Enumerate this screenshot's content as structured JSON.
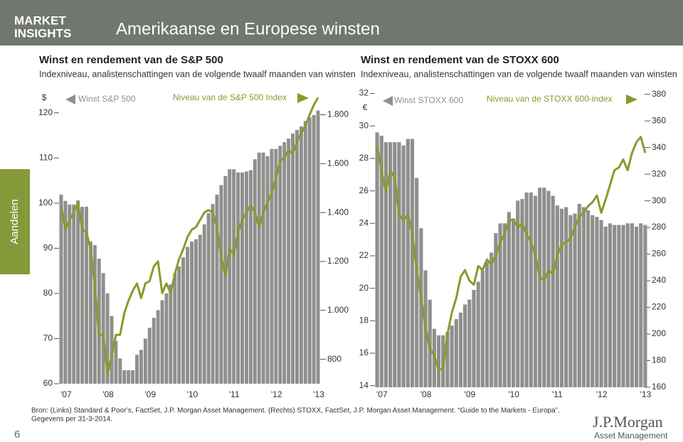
{
  "header": {
    "logo": [
      "MARKET",
      "INSIGHTS"
    ],
    "title": "Amerikaanse en Europese winsten"
  },
  "side_tab": "Aandelen",
  "chart_data": [
    {
      "type": "combo",
      "title": "Winst en rendement van de S&P 500",
      "subtitle": "Indexniveau, analistenschattingen van de volgende twaalf maanden van winsten",
      "y_unit": "$",
      "categories": [
        "'07",
        null,
        null,
        null,
        null,
        null,
        null,
        null,
        null,
        null,
        "'08",
        null,
        null,
        null,
        null,
        null,
        null,
        null,
        null,
        null,
        "'09",
        null,
        null,
        null,
        null,
        null,
        null,
        null,
        null,
        null,
        "'10",
        null,
        null,
        null,
        null,
        null,
        null,
        null,
        null,
        null,
        "'11",
        null,
        null,
        null,
        null,
        null,
        null,
        null,
        null,
        null,
        "'12",
        null,
        null,
        null,
        null,
        null,
        null,
        null,
        null,
        null,
        "'13",
        null
      ],
      "ylim": [
        60,
        125
      ],
      "yticks": [
        60,
        70,
        80,
        90,
        100,
        110,
        120
      ],
      "y2lim": [
        700,
        1900
      ],
      "y2ticks": [
        800,
        {
          "value": 1000,
          "label": "1.000"
        },
        {
          "value": 1200,
          "label": "1.200"
        },
        {
          "value": 1400,
          "label": "1.400"
        },
        {
          "value": 1600,
          "label": "1.600"
        },
        {
          "value": 1800,
          "label": "1.800"
        }
      ],
      "series": [
        {
          "name": "Winst S&P 500",
          "color": "#8e908d",
          "type": "bar",
          "values": [
            101.9,
            100.5,
            99.7,
            99.7,
            100.6,
            99.2,
            99.2,
            91.5,
            90.7,
            87.7,
            84.5,
            80,
            75,
            69.5,
            65.6,
            63,
            63,
            63,
            66.4,
            67.5,
            70,
            72.4,
            74.6,
            76.3,
            78.5,
            80,
            82,
            84.5,
            86,
            88,
            90.3,
            91.5,
            92,
            93,
            95.3,
            97.8,
            99.8,
            101.9,
            104,
            106,
            107.5,
            107.5,
            106.8,
            106.8,
            107,
            107.3,
            109.7,
            111.2,
            111.2,
            110.4,
            112,
            112,
            112.7,
            113.5,
            114.3,
            115.4,
            116.2,
            117,
            118.2,
            119,
            119.5,
            120.5
          ]
        },
        {
          "name": "Niveau van de S&P 500 Index",
          "color": "#8a9a2b",
          "type": "line",
          "axis": "y2",
          "values": [
            1426,
            1330,
            1370,
            1400,
            1440,
            1330,
            1320,
            1250,
            1100,
            900,
            900,
            740,
            810,
            900,
            900,
            990,
            1040,
            1080,
            1110,
            1050,
            1110,
            1120,
            1180,
            1200,
            1070,
            1110,
            1070,
            1150,
            1210,
            1250,
            1300,
            1330,
            1340,
            1370,
            1400,
            1410,
            1400,
            1340,
            1220,
            1140,
            1250,
            1230,
            1320,
            1370,
            1400,
            1430,
            1400,
            1340,
            1400,
            1440,
            1480,
            1540,
            1610,
            1625,
            1655,
            1640,
            1690,
            1725,
            1755,
            1800,
            1840,
            1870
          ]
        }
      ]
    },
    {
      "type": "combo",
      "title": "Winst en rendement van de STOXX 600",
      "subtitle": "Indexniveau, analistenschattingen van de volgende twaalf maanden van winsten",
      "y_unit": "€",
      "categories": [
        "'07",
        null,
        null,
        null,
        null,
        null,
        null,
        null,
        null,
        null,
        "'08",
        null,
        null,
        null,
        null,
        null,
        null,
        null,
        null,
        null,
        "'09",
        null,
        null,
        null,
        null,
        null,
        null,
        null,
        null,
        null,
        "'10",
        null,
        null,
        null,
        null,
        null,
        null,
        null,
        null,
        null,
        "'11",
        null,
        null,
        null,
        null,
        null,
        null,
        null,
        null,
        null,
        "'12",
        null,
        null,
        null,
        null,
        null,
        null,
        null,
        null,
        null,
        "'13",
        null
      ],
      "ylim": [
        13.9,
        32.2
      ],
      "yticks": [
        14,
        16,
        18,
        20,
        22,
        24,
        26,
        28,
        30,
        32
      ],
      "y2lim": [
        160,
        383
      ],
      "y2ticks": [
        160,
        180,
        200,
        220,
        240,
        260,
        280,
        300,
        320,
        340,
        360,
        380
      ],
      "series": [
        {
          "name": "Winst STOXX 600",
          "color": "#8e908d",
          "type": "bar",
          "values": [
            29.6,
            29.4,
            29.0,
            29.0,
            29.0,
            29.0,
            28.8,
            29.2,
            29.2,
            26.8,
            23.7,
            21.1,
            19.3,
            17.5,
            17.1,
            17.1,
            17.3,
            17.7,
            18.1,
            18.5,
            19.0,
            19.3,
            19.9,
            20.4,
            21.1,
            21.6,
            22.2,
            23.4,
            24.0,
            24.0,
            24.7,
            24.3,
            25.4,
            25.5,
            25.9,
            25.9,
            25.7,
            26.2,
            26.2,
            26.0,
            25.7,
            25.1,
            24.9,
            25.0,
            24.5,
            24.6,
            25.2,
            25.0,
            24.8,
            24.5,
            24.4,
            24.2,
            23.8,
            24.0,
            23.9,
            23.9,
            23.9,
            24.0,
            24.0,
            23.8,
            24.0,
            23.9
          ]
        },
        {
          "name": "Niveau van de STOXX 600-index",
          "color": "#8a9a2b",
          "type": "line",
          "axis": "y2",
          "values": [
            341,
            322,
            307,
            323,
            317,
            290,
            285,
            290,
            275,
            248,
            227,
            205,
            189,
            184,
            173,
            174,
            200,
            216,
            227,
            243,
            248,
            240,
            237,
            251,
            248,
            256,
            252,
            259,
            269,
            275,
            285,
            286,
            280,
            283,
            275,
            269,
            259,
            243,
            240,
            248,
            245,
            259,
            267,
            269,
            272,
            280,
            288,
            291,
            296,
            299,
            304,
            291,
            301,
            312,
            323,
            325,
            331,
            323,
            336,
            344,
            348,
            336
          ]
        }
      ]
    }
  ],
  "footer": {
    "source": [
      "Bron: (Links) Standard & Poor’s, FactSet, J.P. Morgan Asset Management. (Rechts) STOXX, FactSet, J.P. Morgan Asset Management. “Guide to the Markets - Europa”.",
      "Gegevens per 31-3-2014."
    ],
    "page": "6",
    "logo": [
      "J.P.Morgan",
      "Asset Management"
    ]
  }
}
